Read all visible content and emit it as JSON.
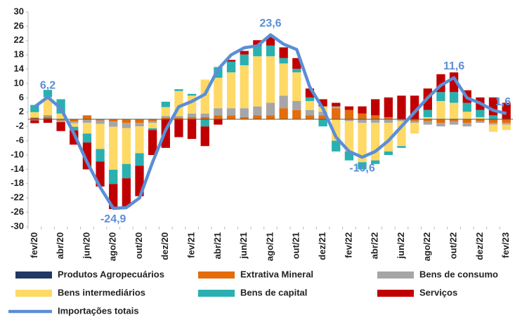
{
  "chart_data": {
    "type": "stacked_bar_line",
    "categories": [
      "fev/20",
      null,
      "abr/20",
      null,
      "jun/20",
      null,
      "ago/20",
      null,
      "out/20",
      null,
      "dez/20",
      null,
      "fev/21",
      null,
      "abr/21",
      null,
      "jun/21",
      null,
      "ago/21",
      null,
      "out/21",
      null,
      "dez/21",
      null,
      "fev/22",
      null,
      "abr/22",
      null,
      "jun/22",
      null,
      "ago/22",
      null,
      "out/22",
      null,
      "dez/22",
      null,
      "fev/23"
    ],
    "series": [
      {
        "name": "Produtos Agropecuários",
        "color": "#1f3864",
        "values": [
          0.2,
          0.2,
          0.1,
          -0.1,
          0.1,
          0.1,
          -0.1,
          0.1,
          0.1,
          0.1,
          0.1,
          0.1,
          0.1,
          0.1,
          0.1,
          0.1,
          0.1,
          0.1,
          0.1,
          0.1,
          0.1,
          0.1,
          0.1,
          0.1,
          0.1,
          0.1,
          0.1,
          0.1,
          0.1,
          0.1,
          0.1,
          0.1,
          0.1,
          0.1,
          0.1,
          0.1,
          0.1
        ]
      },
      {
        "name": "Extrativa Mineral",
        "color": "#e46c0a",
        "values": [
          0.3,
          0.5,
          -0.3,
          -0.5,
          1,
          -0.3,
          -0.5,
          -1,
          -1,
          -0.5,
          0.3,
          0.3,
          0.5,
          0.5,
          1,
          1,
          0.5,
          1,
          1,
          3,
          2.5,
          1,
          1,
          3,
          2.5,
          1.5,
          1,
          0.5,
          0,
          -0.5,
          -0.5,
          -1,
          -0.5,
          -1,
          -0.5,
          -1,
          -1
        ]
      },
      {
        "name": "Bens de consumo",
        "color": "#a6a6a6",
        "values": [
          -0.3,
          0.5,
          -0.5,
          -0.5,
          -1,
          -1,
          -1.5,
          -1.5,
          -1,
          -0.5,
          0.5,
          0.5,
          1,
          1,
          2,
          2,
          2.5,
          2.5,
          3.5,
          3.5,
          2.5,
          1.5,
          1,
          0.5,
          -0.5,
          -1,
          -1,
          -1,
          -0.5,
          -0.5,
          -1,
          -1,
          -1,
          -1,
          -0.5,
          -0.5,
          -0.5
        ]
      },
      {
        "name": "Bens intermediários",
        "color": "#ffd966",
        "values": [
          1.5,
          5,
          1.5,
          -1,
          -3,
          -7,
          -12,
          -10,
          -7.5,
          -1.5,
          2.5,
          7,
          5,
          9.5,
          8.5,
          10,
          12,
          14,
          13,
          9,
          8,
          2.5,
          1.5,
          -6,
          -8.5,
          -11,
          -10.5,
          -8,
          -7,
          -3,
          0.5,
          5,
          4.5,
          2,
          0.5,
          -2,
          -1.5
        ]
      },
      {
        "name": "Bens de capital",
        "color": "#2ab0b0",
        "values": [
          2,
          2,
          4,
          -1,
          -2.5,
          -3.5,
          -4,
          -4,
          -3.5,
          -0.5,
          1.5,
          0.5,
          0.5,
          -2,
          3,
          3,
          3,
          3,
          3,
          1.5,
          1,
          1,
          -2,
          -3,
          -2.5,
          -2,
          -1,
          -1,
          -0.5,
          0,
          2,
          2.5,
          3,
          2.5,
          2,
          1,
          0
        ]
      },
      {
        "name": "Serviços",
        "color": "#c00000",
        "values": [
          -0.8,
          -1,
          -2.5,
          -4,
          -7.5,
          -7,
          -7,
          -8,
          -8.5,
          -7,
          -8,
          -5,
          -5.5,
          -5.5,
          -1.5,
          0.5,
          1,
          1.5,
          2.5,
          3,
          3,
          2.5,
          2,
          1,
          1,
          2,
          4.5,
          5.5,
          6.5,
          6.5,
          6,
          5,
          5.5,
          3.5,
          3.5,
          5,
          4.5
        ]
      }
    ],
    "total": {
      "name": "Importações totais",
      "color": "#5b8ed6",
      "values": [
        3.5,
        6.2,
        3,
        -4,
        -12,
        -19,
        -24.9,
        -24.7,
        -22,
        -12,
        -3,
        3.5,
        5,
        7,
        14,
        18,
        20,
        20.5,
        23.6,
        21,
        19.5,
        9,
        3,
        -5,
        -9,
        -10.6,
        -9,
        -6,
        -2,
        2,
        6,
        9.5,
        11.6,
        6,
        4.5,
        2.5,
        1.6
      ],
      "value_labels": [
        null,
        "6,2",
        null,
        null,
        null,
        null,
        "-24,9",
        null,
        null,
        null,
        null,
        null,
        null,
        null,
        null,
        null,
        null,
        null,
        "23,6",
        null,
        null,
        null,
        null,
        null,
        null,
        "-10,6",
        null,
        null,
        null,
        null,
        null,
        null,
        "11,6",
        null,
        null,
        null,
        "1,6"
      ]
    },
    "ylim": [
      -30,
      30
    ],
    "yticks": [
      30,
      26,
      22,
      18,
      14,
      10,
      6,
      2,
      -2,
      -6,
      -10,
      -14,
      -18,
      -22,
      -26,
      -30
    ]
  }
}
